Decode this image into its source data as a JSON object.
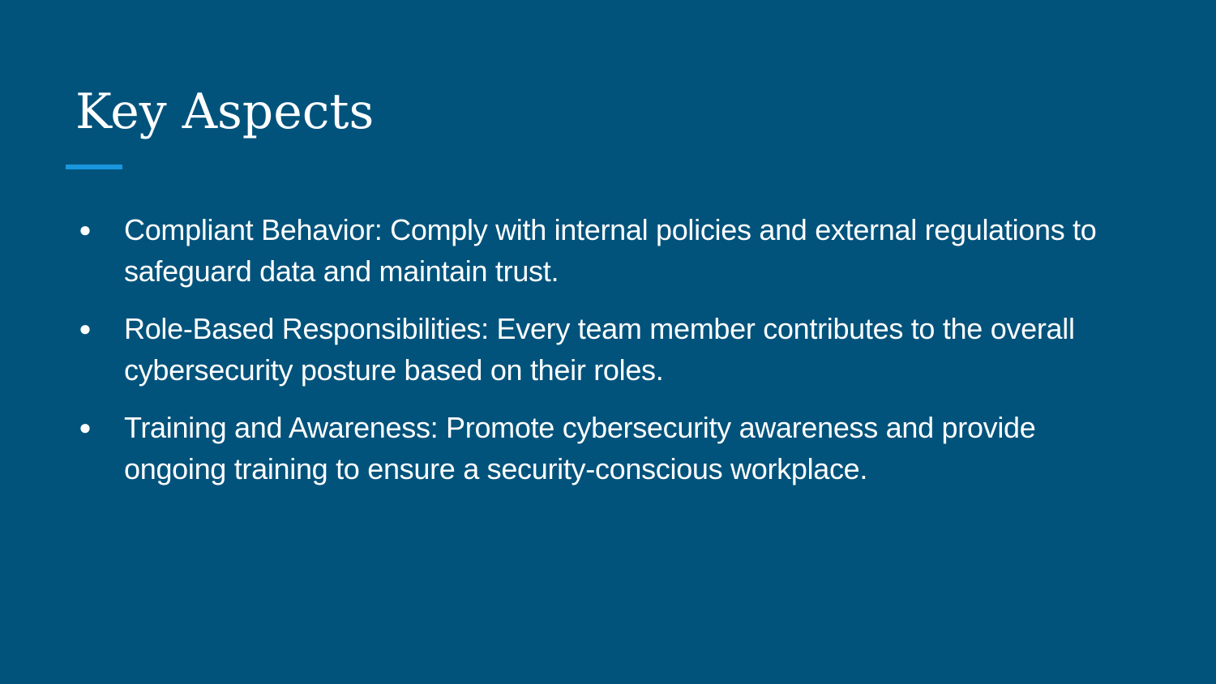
{
  "slide": {
    "title": "Key Aspects",
    "accent_color": "#1a96de",
    "background_color": "#01537c",
    "bullets": [
      {
        "marker": "●",
        "text": "Compliant Behavior: Comply with internal policies and external regulations to safeguard data and maintain trust."
      },
      {
        "marker": "●",
        "text": "Role-Based Responsibilities: Every team member contributes to the overall cybersecurity posture based on their roles."
      },
      {
        "marker": "●",
        "text": "Training and Awareness: Promote cybersecurity awareness and provide ongoing training to ensure a security-conscious workplace."
      }
    ]
  }
}
